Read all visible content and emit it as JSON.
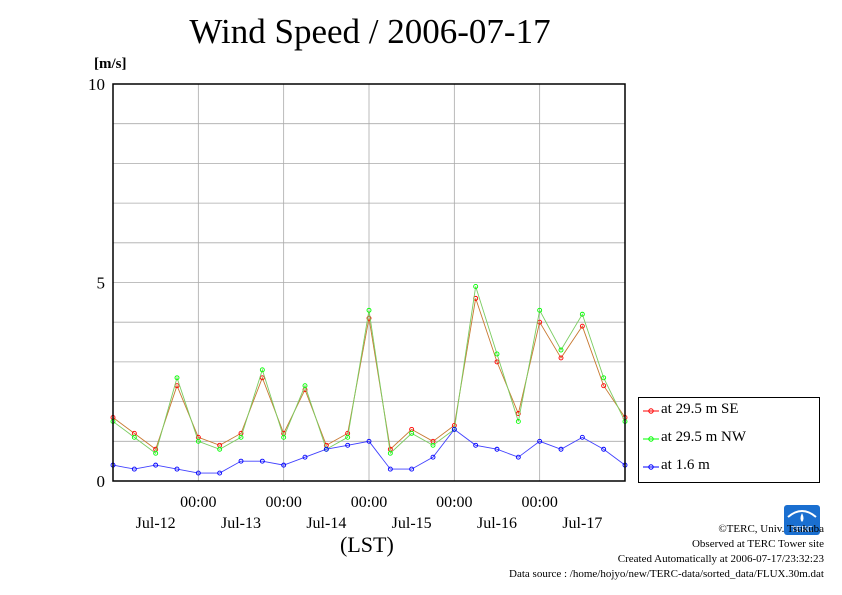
{
  "chart_data": {
    "type": "line",
    "title": "Wind Speed / 2006-07-17",
    "ylabel": "[m/s]",
    "xlabel": "(LST)",
    "ylim": [
      0,
      10
    ],
    "yticks": [
      "0",
      "5",
      "10"
    ],
    "xticks_time": [
      "00:00",
      "00:00",
      "00:00",
      "00:00",
      "00:00"
    ],
    "xticks_date": [
      "Jul-12",
      "Jul-13",
      "Jul-14",
      "Jul-15",
      "Jul-16",
      "Jul-17"
    ],
    "x_range_days": [
      0,
      6
    ],
    "grid": true,
    "legend_position": "right",
    "series": [
      {
        "name": "at 29.5 m SE",
        "color": "#ff0000",
        "x": [
          0.0,
          0.25,
          0.5,
          0.75,
          1.0,
          1.25,
          1.5,
          1.75,
          2.0,
          2.25,
          2.5,
          2.75,
          3.0,
          3.25,
          3.5,
          3.75,
          4.0,
          4.25,
          4.5,
          4.75,
          5.0,
          5.25,
          5.5,
          5.75,
          6.0
        ],
        "values": [
          1.6,
          1.2,
          0.8,
          2.4,
          1.1,
          0.9,
          1.2,
          2.6,
          1.2,
          2.3,
          0.9,
          1.2,
          4.1,
          0.8,
          1.3,
          1.0,
          1.4,
          4.6,
          3.0,
          1.7,
          4.0,
          3.1,
          3.9,
          2.4,
          1.6
        ]
      },
      {
        "name": "at 29.5 m NW",
        "color": "#00ff00",
        "x": [
          0.0,
          0.25,
          0.5,
          0.75,
          1.0,
          1.25,
          1.5,
          1.75,
          2.0,
          2.25,
          2.5,
          2.75,
          3.0,
          3.25,
          3.5,
          3.75,
          4.0,
          4.25,
          4.5,
          4.75,
          5.0,
          5.25,
          5.5,
          5.75,
          6.0
        ],
        "values": [
          1.5,
          1.1,
          0.7,
          2.6,
          1.0,
          0.8,
          1.1,
          2.8,
          1.1,
          2.4,
          0.8,
          1.1,
          4.3,
          0.7,
          1.2,
          0.9,
          1.3,
          4.9,
          3.2,
          1.5,
          4.3,
          3.3,
          4.2,
          2.6,
          1.5
        ]
      },
      {
        "name": "at 1.6 m",
        "color": "#0000ff",
        "x": [
          0.0,
          0.25,
          0.5,
          0.75,
          1.0,
          1.25,
          1.5,
          1.75,
          2.0,
          2.25,
          2.5,
          2.75,
          3.0,
          3.25,
          3.5,
          3.75,
          4.0,
          4.25,
          4.5,
          4.75,
          5.0,
          5.25,
          5.5,
          5.75,
          6.0
        ],
        "values": [
          0.4,
          0.3,
          0.4,
          0.3,
          0.2,
          0.2,
          0.5,
          0.5,
          0.4,
          0.6,
          0.8,
          0.9,
          1.0,
          0.3,
          0.3,
          0.6,
          1.3,
          0.9,
          0.8,
          0.6,
          1.0,
          0.8,
          1.1,
          0.8,
          0.4
        ]
      }
    ]
  },
  "credits": {
    "copyright": "©TERC, Univ. Tsukuba",
    "observed": "Observed at TERC Tower site",
    "created": "Created Automatically at 2006-07-17/23:32:23",
    "source": "Data source : /home/hojyo/new/TERC-data/sorted_data/FLUX.30m.dat",
    "logo_text": "TERC"
  }
}
